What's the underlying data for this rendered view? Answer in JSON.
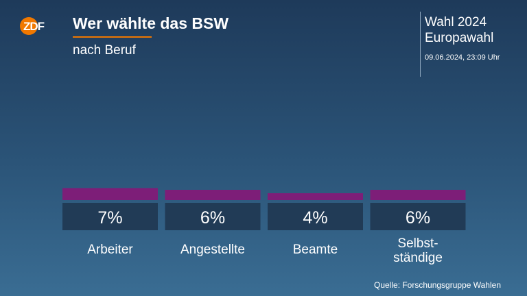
{
  "header": {
    "logo_text": "ZDF",
    "title": "Wer wählte das BSW",
    "subtitle": "nach Beruf"
  },
  "election": {
    "title_line1": "Wahl 2024",
    "title_line2": "Europawahl",
    "timestamp": "09.06.2024, 23:09 Uhr"
  },
  "chart_data": {
    "type": "bar",
    "categories": [
      "Arbeiter",
      "Angestellte",
      "Beamte",
      "Selbst-\nständige"
    ],
    "values": [
      7,
      6,
      4,
      6
    ],
    "value_labels": [
      "7%",
      "6%",
      "4%",
      "6%"
    ],
    "unit": "%",
    "title": "Wer wählte das BSW",
    "subtitle": "nach Beruf",
    "xlabel": "",
    "ylabel": "",
    "grid": false,
    "legend": "none"
  },
  "colors": {
    "bar": "#7d1e78",
    "label_box": "#213b56",
    "accent": "#f07800"
  },
  "footer": {
    "source": "Quelle: Forschungsgruppe Wahlen"
  }
}
